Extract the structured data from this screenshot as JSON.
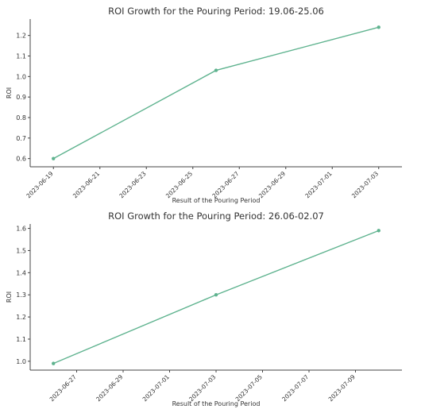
{
  "chart_data": [
    {
      "type": "line",
      "title": "ROI Growth for the Pouring Period: 19.06-25.06",
      "xlabel": "Result of the Pouring Period",
      "ylabel": "ROI",
      "x": [
        "2023-06-19",
        "2023-06-26",
        "2023-07-03"
      ],
      "series": [
        {
          "values": [
            0.6,
            1.03,
            1.24
          ]
        }
      ],
      "xlim": [
        "2023-06-18",
        "2023-07-04"
      ],
      "ylim": [
        0.56,
        1.28
      ],
      "xticks": [
        "2023-06-19",
        "2023-06-21",
        "2023-06-23",
        "2023-06-25",
        "2023-06-27",
        "2023-06-29",
        "2023-07-01",
        "2023-07-03"
      ],
      "yticks": [
        0.6,
        0.7,
        0.8,
        0.9,
        1.0,
        1.1,
        1.2
      ],
      "color": "#5fb38f",
      "grid": false
    },
    {
      "type": "line",
      "title": "ROI Growth for the Pouring Period: 26.06-02.07",
      "xlabel": "Result of the Pouring Period",
      "ylabel": "ROI",
      "x": [
        "2023-06-26",
        "2023-07-03",
        "2023-07-10"
      ],
      "series": [
        {
          "values": [
            0.99,
            1.3,
            1.59
          ]
        }
      ],
      "xlim": [
        "2023-06-25",
        "2023-07-11"
      ],
      "ylim": [
        0.96,
        1.62
      ],
      "xticks": [
        "2023-06-27",
        "2023-06-29",
        "2023-07-01",
        "2023-07-03",
        "2023-07-05",
        "2023-07-07",
        "2023-07-09"
      ],
      "yticks": [
        1.0,
        1.1,
        1.2,
        1.3,
        1.4,
        1.5,
        1.6
      ],
      "color": "#5fb38f",
      "grid": false
    }
  ]
}
